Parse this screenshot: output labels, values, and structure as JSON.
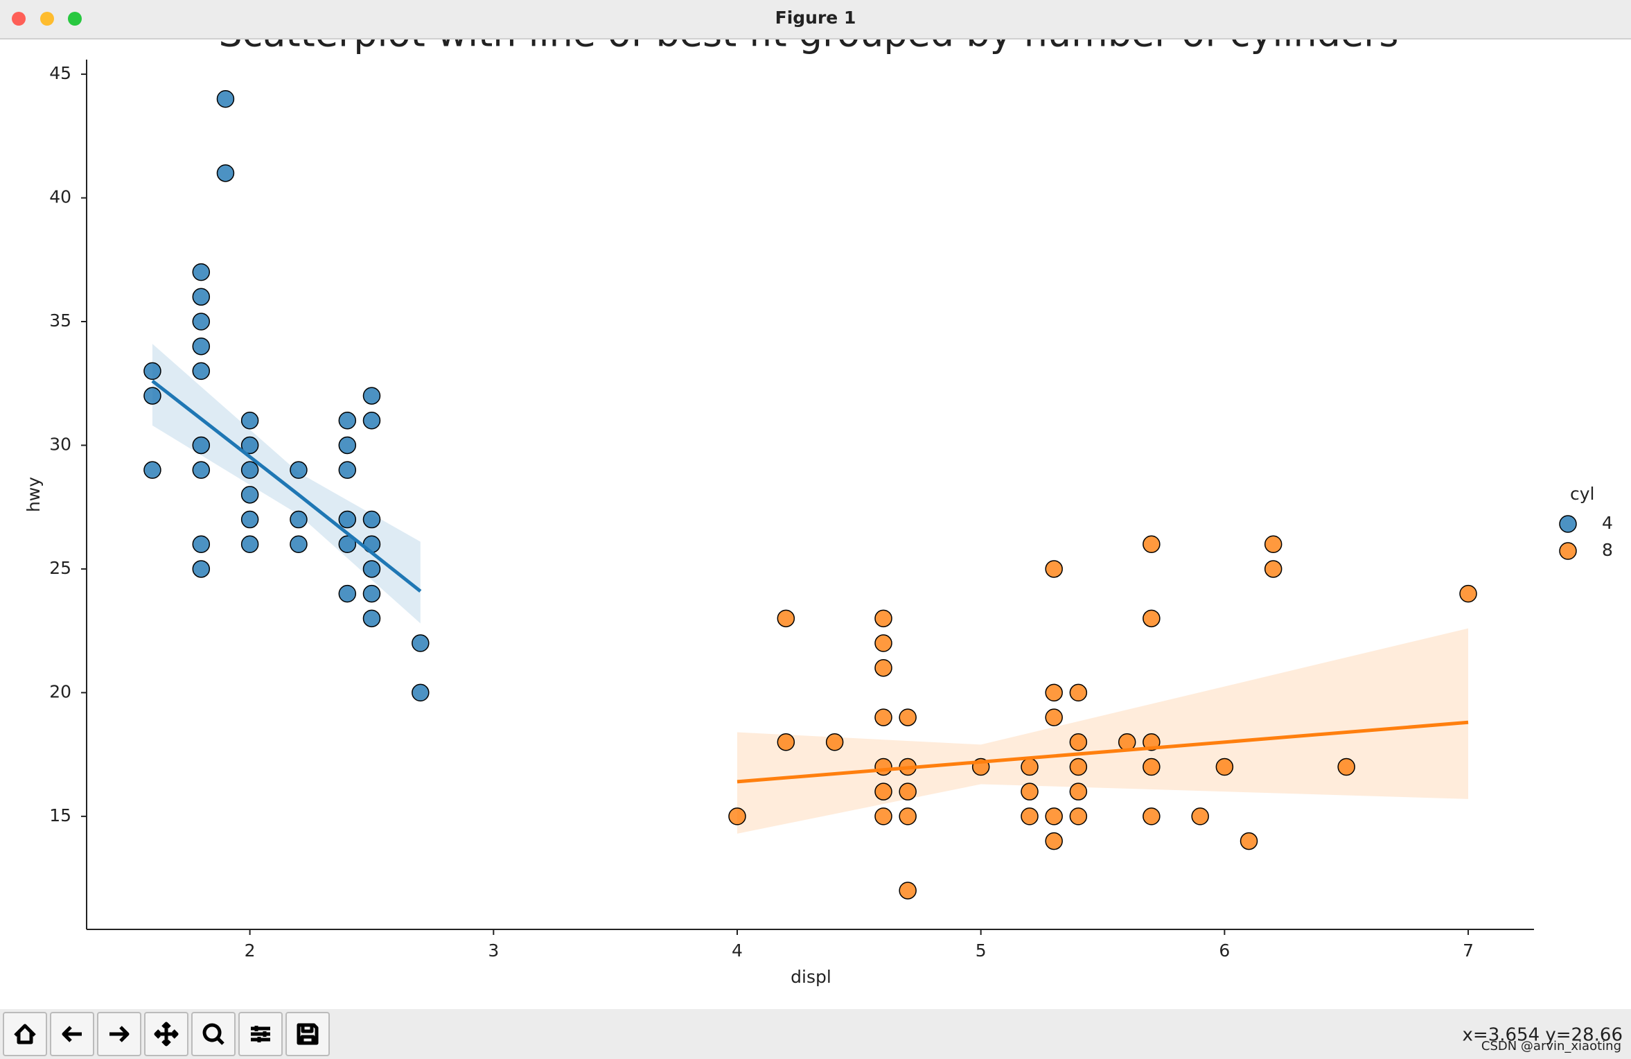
{
  "window": {
    "title": "Figure 1",
    "status": "x=3.654 y=28.66",
    "watermark": "CSDN @arvin_xiaoting"
  },
  "chart_data": {
    "type": "scatter",
    "title": "Scatterplot with line of best fit grouped by number of cylinders",
    "x_label": "displ",
    "y_label": "hwy",
    "legend_title": "cyl",
    "legend_position": "right",
    "xlim": [
      1.33,
      7.27
    ],
    "ylim": [
      10.43,
      45.59
    ],
    "xticks": [
      2,
      3,
      4,
      5,
      6,
      7
    ],
    "yticks": [
      15,
      20,
      25,
      30,
      35,
      40,
      45
    ],
    "series": [
      {
        "name": "4",
        "color": "#1f77b4",
        "x": [
          1.6,
          1.6,
          1.6,
          1.8,
          1.8,
          1.8,
          1.8,
          1.8,
          1.8,
          1.8,
          1.8,
          1.8,
          1.9,
          1.9,
          2.0,
          2.0,
          2.0,
          2.0,
          2.0,
          2.0,
          2.2,
          2.2,
          2.2,
          2.4,
          2.4,
          2.4,
          2.4,
          2.4,
          2.4,
          2.5,
          2.5,
          2.5,
          2.5,
          2.5,
          2.5,
          2.5,
          2.7,
          2.7
        ],
        "values": [
          33,
          32,
          29,
          37,
          36,
          35,
          34,
          33,
          30,
          29,
          26,
          25,
          44,
          41,
          31,
          30,
          29,
          28,
          27,
          26,
          29,
          27,
          26,
          31,
          30,
          29,
          27,
          26,
          24,
          32,
          31,
          27,
          26,
          25,
          24,
          23,
          22,
          20
        ],
        "fit": {
          "x": [
            1.6,
            2.2,
            2.7
          ],
          "y": [
            32.6,
            28.0,
            24.1
          ],
          "upper": [
            34.1,
            28.9,
            26.1
          ],
          "lower": [
            30.8,
            27.2,
            22.8
          ]
        }
      },
      {
        "name": "8",
        "color": "#ff7f0e",
        "x": [
          4.0,
          4.2,
          4.2,
          4.4,
          4.6,
          4.6,
          4.6,
          4.6,
          4.6,
          4.6,
          4.6,
          4.7,
          4.7,
          4.7,
          4.7,
          4.7,
          5.0,
          5.2,
          5.2,
          5.2,
          5.3,
          5.3,
          5.3,
          5.3,
          5.3,
          5.4,
          5.4,
          5.4,
          5.4,
          5.4,
          5.6,
          5.7,
          5.7,
          5.7,
          5.7,
          5.7,
          5.9,
          6.0,
          6.1,
          6.2,
          6.2,
          6.5,
          7.0
        ],
        "values": [
          15,
          23,
          18,
          18,
          23,
          22,
          21,
          19,
          17,
          16,
          15,
          19,
          17,
          16,
          15,
          12,
          17,
          17,
          16,
          15,
          25,
          20,
          19,
          15,
          14,
          20,
          18,
          17,
          16,
          15,
          18,
          26,
          23,
          18,
          17,
          15,
          15,
          17,
          14,
          26,
          25,
          17,
          24
        ],
        "fit": {
          "x": [
            4.0,
            5.0,
            7.0
          ],
          "y": [
            16.4,
            17.2,
            18.8
          ],
          "upper": [
            18.4,
            17.9,
            22.6
          ],
          "lower": [
            14.3,
            16.3,
            15.7
          ]
        }
      }
    ]
  }
}
